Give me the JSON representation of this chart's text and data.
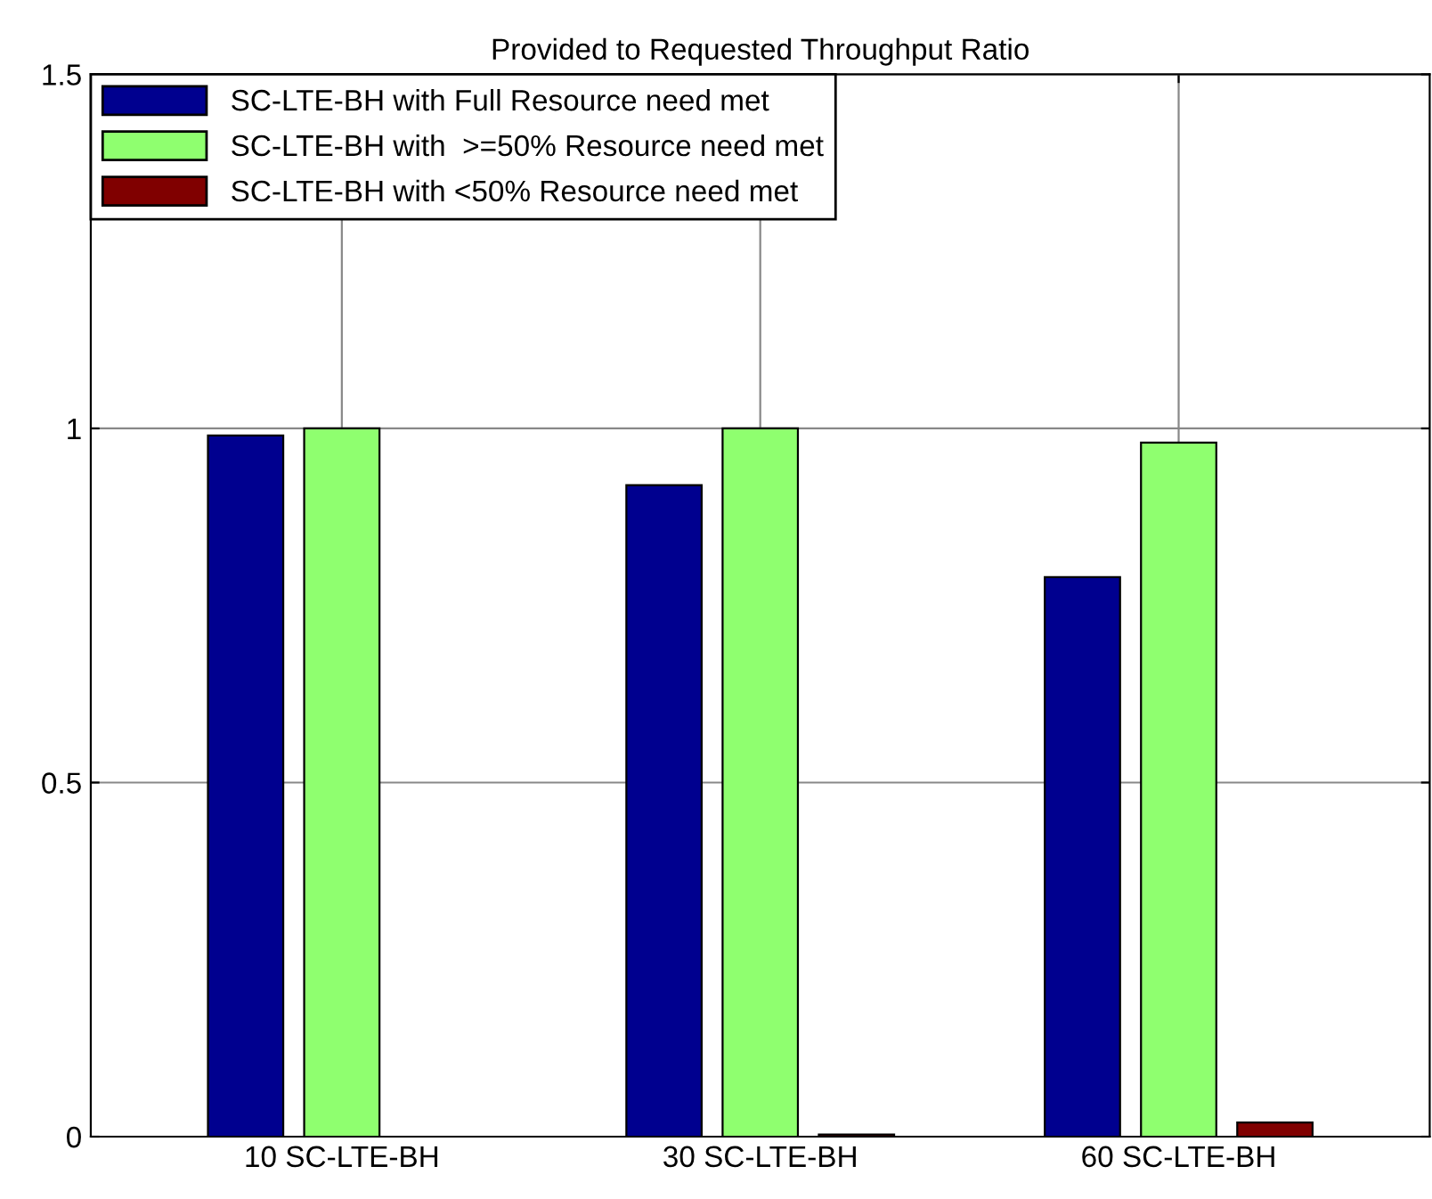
{
  "chart_data": {
    "type": "bar",
    "title": "Provided to Requested Throughput Ratio",
    "categories": [
      "10 SC-LTE-BH",
      "30 SC-LTE-BH",
      "60 SC-LTE-BH"
    ],
    "series": [
      {
        "name": "SC-LTE-BH with Full Resource need met",
        "color": "#00008f",
        "values": [
          0.99,
          0.92,
          0.79
        ]
      },
      {
        "name": "SC-LTE-BH with  >=50% Resource need met",
        "color": "#8fff6f",
        "values": [
          1.0,
          1.0,
          0.98
        ]
      },
      {
        "name": "SC-LTE-BH with <50% Resource need met",
        "color": "#800000",
        "values": [
          0.0,
          0.003,
          0.02
        ]
      }
    ],
    "ylim": [
      0,
      1.5
    ],
    "yticks": [
      0,
      0.5,
      1,
      1.5
    ],
    "grid": true,
    "legend": "top left"
  }
}
